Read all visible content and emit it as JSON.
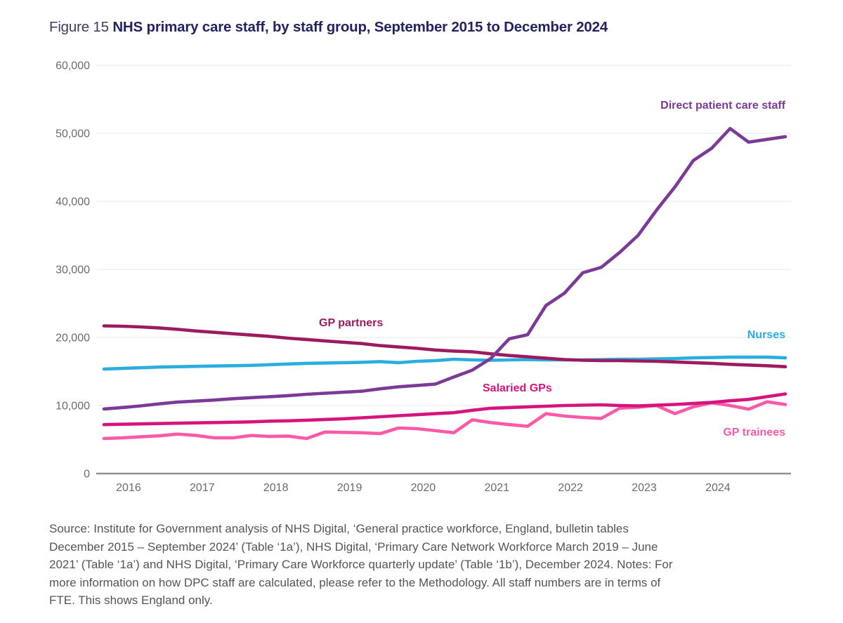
{
  "figure": {
    "label": "Figure 15",
    "title": "NHS primary care staff, by staff group, September 2015 to December 2024"
  },
  "source_note": "Source: Institute for Government analysis of NHS Digital, ‘General practice workforce, England, bulletin tables\nDecember 2015 – September 2024’ (Table ‘1a’), NHS Digital, ‘Primary Care Network Workforce March 2019 – June\n2021’ (Table ‘1a’) and NHS Digital, ‘Primary Care Workforce quarterly update’ (Table ‘1b’), December 2024. Notes: For\nmore information on how DPC staff are calculated, please refer to the Methodology. All staff numbers are in terms of\nFTE. This shows England only.",
  "colors": {
    "title_navy": "#232360",
    "axis_text_gray": "#6a6b70",
    "gridline_gray": "#ececee",
    "axis_line_gray": "#919195",
    "source_text_gray": "#54555c",
    "background": "#ffffff"
  },
  "chart_data": {
    "type": "line",
    "title": "NHS primary care staff, by staff group, September 2015 to December 2024",
    "xlabel": "",
    "ylabel": "",
    "ylim": [
      0,
      60000
    ],
    "grid": "horizontal",
    "legend_position": "inline-labels",
    "y_tick_values": [
      0,
      10000,
      20000,
      30000,
      40000,
      50000,
      60000
    ],
    "y_tick_labels": [
      "0",
      "10,000",
      "20,000",
      "30,000",
      "40,000",
      "50,000",
      "60,000"
    ],
    "x_axis_years": [
      "2016",
      "2017",
      "2018",
      "2019",
      "2020",
      "2021",
      "2022",
      "2023",
      "2024"
    ],
    "x": [
      "Sep 2015",
      "Dec 2015",
      "Mar 2016",
      "Jun 2016",
      "Sep 2016",
      "Dec 2016",
      "Mar 2017",
      "Jun 2017",
      "Sep 2017",
      "Dec 2017",
      "Mar 2018",
      "Jun 2018",
      "Sep 2018",
      "Dec 2018",
      "Mar 2019",
      "Jun 2019",
      "Sep 2019",
      "Dec 2019",
      "Mar 2020",
      "Jun 2020",
      "Sep 2020",
      "Dec 2020",
      "Mar 2021",
      "Jun 2021",
      "Sep 2021",
      "Dec 2021",
      "Mar 2022",
      "Jun 2022",
      "Sep 2022",
      "Dec 2022",
      "Mar 2023",
      "Jun 2023",
      "Sep 2023",
      "Dec 2023",
      "Mar 2024",
      "Jun 2024",
      "Sep 2024",
      "Dec 2024"
    ],
    "series": [
      {
        "name": "Direct patient care staff",
        "color": "#7b3a97",
        "values": [
          9500,
          9700,
          9950,
          10250,
          10500,
          10650,
          10800,
          11000,
          11150,
          11300,
          11450,
          11650,
          11800,
          11950,
          12100,
          12450,
          12750,
          12950,
          13150,
          14200,
          15200,
          16900,
          19800,
          20400,
          24700,
          26500,
          29500,
          30300,
          32500,
          35000,
          38700,
          42100,
          46000,
          47800,
          50700,
          48700,
          49100,
          49500
        ]
      },
      {
        "name": "GP partners",
        "color": "#9c1b5e",
        "values": [
          21700,
          21650,
          21550,
          21400,
          21200,
          20950,
          20750,
          20550,
          20350,
          20150,
          19900,
          19700,
          19500,
          19300,
          19100,
          18800,
          18600,
          18400,
          18150,
          18000,
          17900,
          17600,
          17350,
          17150,
          16950,
          16750,
          16650,
          16600,
          16600,
          16550,
          16500,
          16400,
          16300,
          16200,
          16050,
          15950,
          15850,
          15700
        ]
      },
      {
        "name": "Nurses",
        "color": "#2badde",
        "values": [
          15350,
          15450,
          15550,
          15650,
          15700,
          15750,
          15800,
          15850,
          15900,
          16000,
          16100,
          16200,
          16250,
          16300,
          16350,
          16450,
          16300,
          16500,
          16600,
          16800,
          16700,
          16650,
          16700,
          16750,
          16700,
          16700,
          16700,
          16750,
          16800,
          16800,
          16850,
          16900,
          17000,
          17050,
          17100,
          17100,
          17100,
          17000
        ]
      },
      {
        "name": "Salaried GPs",
        "color": "#d5157d",
        "values": [
          7200,
          7250,
          7300,
          7350,
          7400,
          7450,
          7500,
          7550,
          7600,
          7700,
          7750,
          7850,
          7950,
          8050,
          8200,
          8350,
          8500,
          8650,
          8800,
          8950,
          9300,
          9600,
          9700,
          9800,
          9900,
          10000,
          10050,
          10100,
          10000,
          9950,
          10050,
          10150,
          10300,
          10450,
          10700,
          10900,
          11300,
          11700
        ]
      },
      {
        "name": "GP trainees",
        "color": "#fb5aa7",
        "values": [
          5150,
          5250,
          5400,
          5550,
          5800,
          5600,
          5250,
          5250,
          5600,
          5450,
          5500,
          5150,
          6100,
          6050,
          6000,
          5870,
          6700,
          6600,
          6300,
          6000,
          7900,
          7500,
          7200,
          6950,
          8800,
          8450,
          8250,
          8100,
          9600,
          9750,
          10000,
          8800,
          9800,
          10400,
          10000,
          9450,
          10550,
          10150
        ]
      }
    ]
  }
}
